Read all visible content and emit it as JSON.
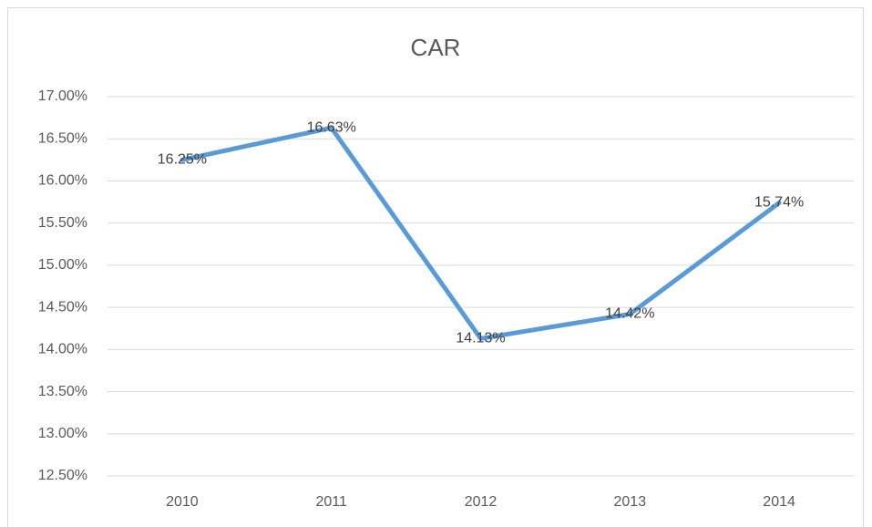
{
  "chart_data": {
    "type": "line",
    "title": "CAR",
    "categories": [
      "2010",
      "2011",
      "2012",
      "2013",
      "2014"
    ],
    "series": [
      {
        "name": "CAR",
        "color": "#5b9bd5",
        "values": [
          16.25,
          16.63,
          14.13,
          14.42,
          15.74
        ],
        "value_labels": [
          "16.25%",
          "16.63%",
          "14.13%",
          "14.42%",
          "15.74%"
        ]
      }
    ],
    "ylim": [
      12.5,
      17.0
    ],
    "yticks": [
      {
        "value": 12.5,
        "label": "12.50%"
      },
      {
        "value": 13.0,
        "label": "13.00%"
      },
      {
        "value": 13.5,
        "label": "13.50%"
      },
      {
        "value": 14.0,
        "label": "14.00%"
      },
      {
        "value": 14.5,
        "label": "14.50%"
      },
      {
        "value": 15.0,
        "label": "15.00%"
      },
      {
        "value": 15.5,
        "label": "15.50%"
      },
      {
        "value": 16.0,
        "label": "16.00%"
      },
      {
        "value": 16.5,
        "label": "16.50%"
      },
      {
        "value": 17.0,
        "label": "17.00%"
      }
    ],
    "grid": true
  }
}
